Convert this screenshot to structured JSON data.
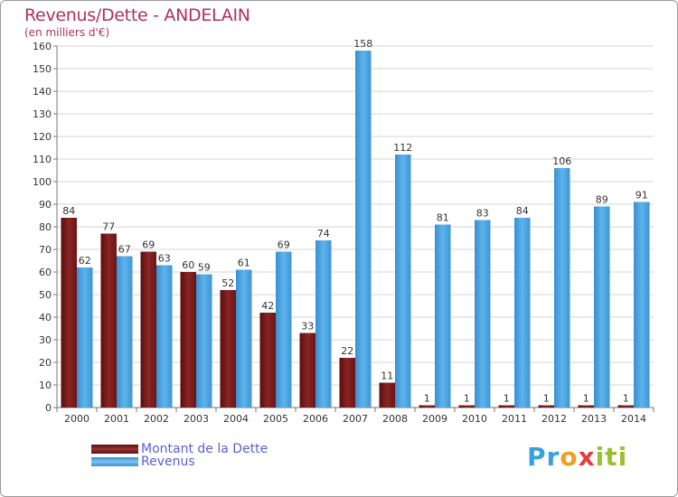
{
  "chart_data": {
    "type": "bar",
    "title": "Revenus/Dette - ANDELAIN",
    "subtitle": "(en milliers d'€)",
    "categories": [
      "2000",
      "2001",
      "2002",
      "2003",
      "2004",
      "2005",
      "2006",
      "2007",
      "2008",
      "2009",
      "2010",
      "2011",
      "2012",
      "2013",
      "2014"
    ],
    "series": [
      {
        "name": "Montant de la Dette",
        "values": [
          84,
          77,
          69,
          60,
          52,
          42,
          33,
          22,
          11,
          1,
          1,
          1,
          1,
          1,
          1
        ]
      },
      {
        "name": "Revenus",
        "values": [
          62,
          67,
          63,
          59,
          61,
          69,
          74,
          158,
          112,
          81,
          83,
          84,
          106,
          89,
          91
        ]
      }
    ],
    "ylim": [
      0,
      160
    ],
    "yticks": [
      0,
      10,
      20,
      30,
      40,
      50,
      60,
      70,
      80,
      90,
      100,
      110,
      120,
      130,
      140,
      150,
      160
    ],
    "grid": true,
    "legend": "bottom-left",
    "colors": {
      "dette": "#7a1a1a",
      "revenus": "#4aa3e0"
    }
  },
  "logo": {
    "text_parts": [
      "Pr",
      "o",
      "x",
      "iti"
    ]
  }
}
